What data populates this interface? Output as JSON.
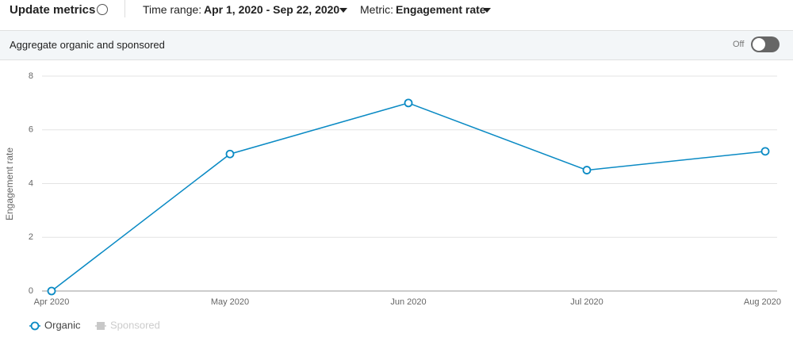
{
  "header": {
    "title": "Update metrics",
    "time_range_label": "Time range:",
    "time_range": "Apr 1, 2020 - Sep 22, 2020",
    "metric_label": "Metric:",
    "metric": "Engagement rate"
  },
  "toggle_bar": {
    "label": "Aggregate organic and sponsored",
    "state": "Off"
  },
  "chart_data": {
    "type": "line",
    "y_label": "Engagement rate",
    "categories": [
      "Apr 2020",
      "May 2020",
      "Jun 2020",
      "Jul 2020",
      "Aug 2020"
    ],
    "series": [
      {
        "name": "Organic",
        "color": "#0a8ac4",
        "values": [
          0,
          5.1,
          7.0,
          4.5,
          5.2
        ]
      },
      {
        "name": "Sponsored",
        "color": "#c8c8c8",
        "values": [
          null,
          null,
          null,
          null,
          null
        ]
      }
    ],
    "ylim": [
      0,
      8
    ],
    "yticks": [
      0,
      2,
      4,
      6,
      8
    ],
    "grid": true
  }
}
